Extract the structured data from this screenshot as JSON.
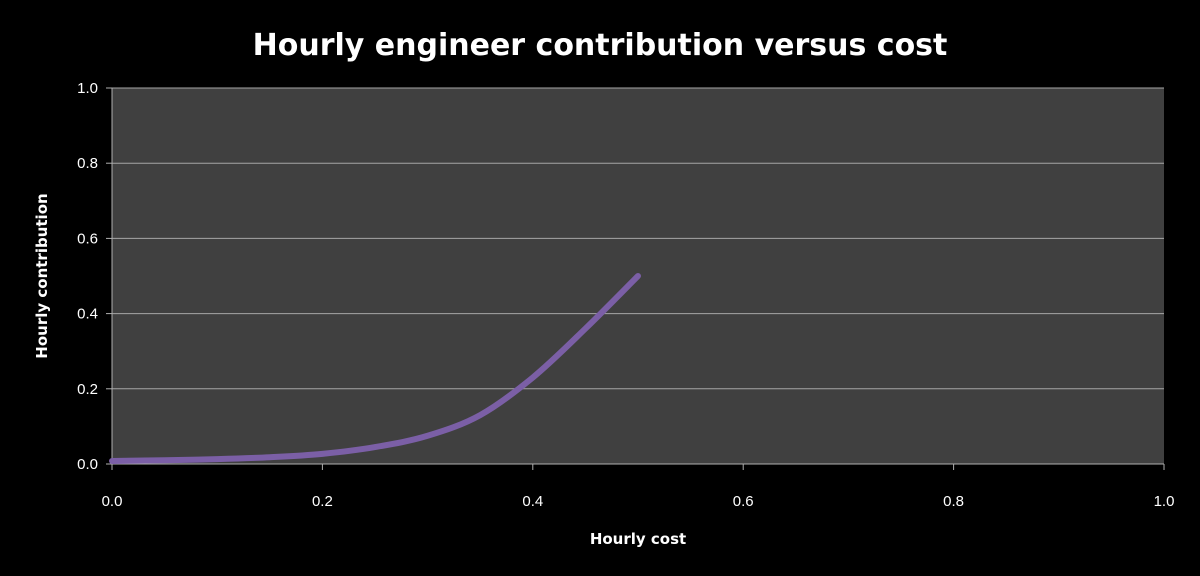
{
  "chart_data": {
    "type": "line",
    "title": "Hourly engineer contribution versus cost",
    "xlabel": "Hourly cost",
    "ylabel": "Hourly contribution",
    "xlim": [
      0,
      1
    ],
    "ylim": [
      0,
      1
    ],
    "x_ticks": [
      "0.0",
      "0.2",
      "0.4",
      "0.6",
      "0.8",
      "1.0"
    ],
    "y_ticks": [
      "0.0",
      "0.2",
      "0.4",
      "0.6",
      "0.8",
      "1.0"
    ],
    "grid": "horizontal",
    "legend": "none",
    "series": [
      {
        "x": [
          0.0,
          0.05,
          0.1,
          0.15,
          0.2,
          0.25,
          0.3,
          0.35,
          0.4,
          0.45,
          0.5
        ],
        "y": [
          0.008,
          0.01,
          0.013,
          0.018,
          0.027,
          0.045,
          0.075,
          0.13,
          0.23,
          0.36,
          0.5
        ],
        "color": "#7b5fa6"
      }
    ]
  },
  "colors": {
    "background": "#000000",
    "plot_area": "#404040",
    "gridline": "#a6a6a6",
    "axis": "#b0b0b0",
    "text": "#ffffff"
  }
}
